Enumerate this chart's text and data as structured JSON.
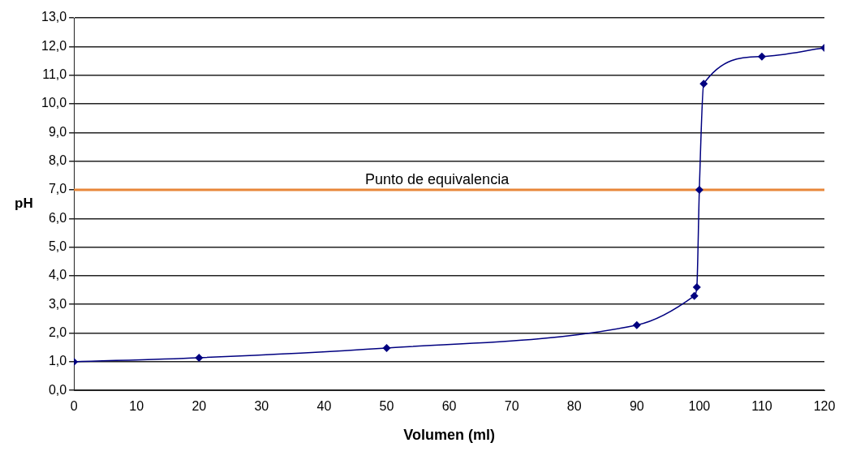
{
  "chart_data": {
    "type": "line",
    "xlabel": "Volumen (ml)",
    "ylabel": "pH",
    "series": [
      {
        "color": "#000080",
        "x": [
          0,
          20,
          50,
          90,
          99.2,
          99.6,
          100,
          100.7,
          110,
          120
        ],
        "values": [
          1.0,
          1.14,
          1.48,
          2.28,
          3.3,
          3.6,
          7.0,
          10.7,
          11.65,
          11.95
        ]
      }
    ],
    "marker": "diamond",
    "line_style": "solid",
    "grid": "y",
    "legend": false,
    "xlim": [
      0,
      120
    ],
    "xticks": [
      0,
      10,
      20,
      30,
      40,
      50,
      60,
      70,
      80,
      90,
      100,
      110,
      120
    ],
    "ylim": [
      0,
      13
    ],
    "yticks": [
      {
        "value": 0,
        "label": "0,0"
      },
      {
        "value": 1,
        "label": "1,0"
      },
      {
        "value": 2,
        "label": "2,0"
      },
      {
        "value": 3,
        "label": "3,0"
      },
      {
        "value": 4,
        "label": "4,0"
      },
      {
        "value": 5,
        "label": "5,0"
      },
      {
        "value": 6,
        "label": "6,0"
      },
      {
        "value": 7,
        "label": "7,0"
      },
      {
        "value": 8,
        "label": "8,0"
      },
      {
        "value": 9,
        "label": "9,0"
      },
      {
        "value": 10,
        "label": "10,0"
      },
      {
        "value": 11,
        "label": "11,0"
      },
      {
        "value": 12,
        "label": "12,0"
      },
      {
        "value": 13,
        "label": "13,0"
      }
    ],
    "ref_lines": [
      {
        "axis": "y",
        "value": 7.0,
        "label": "Punto de equivalencia",
        "color": "#e8873a"
      }
    ]
  }
}
